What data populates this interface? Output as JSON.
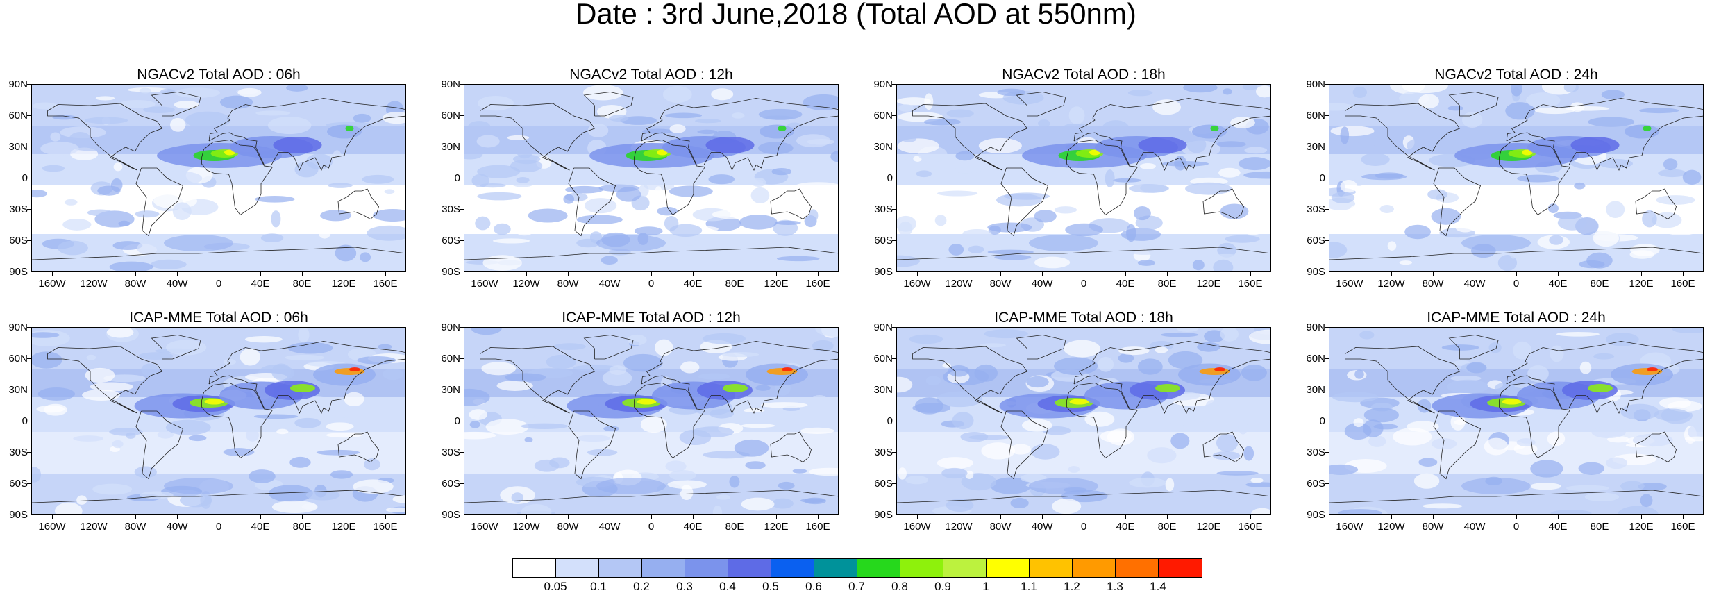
{
  "title": "Date : 3rd June,2018 (Total AOD at 550nm)",
  "panels": [
    {
      "title": "NGACv2 Total AOD : 06h",
      "model": "NGACv2",
      "hour": 6
    },
    {
      "title": "NGACv2 Total AOD : 12h",
      "model": "NGACv2",
      "hour": 12
    },
    {
      "title": "NGACv2 Total AOD : 18h",
      "model": "NGACv2",
      "hour": 18
    },
    {
      "title": "NGACv2 Total AOD : 24h",
      "model": "NGACv2",
      "hour": 24
    },
    {
      "title": "ICAP-MME Total AOD : 06h",
      "model": "ICAP-MME",
      "hour": 6
    },
    {
      "title": "ICAP-MME Total AOD : 12h",
      "model": "ICAP-MME",
      "hour": 12
    },
    {
      "title": "ICAP-MME Total AOD : 18h",
      "model": "ICAP-MME",
      "hour": 18
    },
    {
      "title": "ICAP-MME Total AOD : 24h",
      "model": "ICAP-MME",
      "hour": 24
    }
  ],
  "lat_labels": [
    "90N",
    "60N",
    "30N",
    "0",
    "30S",
    "60S",
    "90S"
  ],
  "lon_labels": [
    "160W",
    "120W",
    "80W",
    "40W",
    "0",
    "40E",
    "80E",
    "120E",
    "160E"
  ],
  "colorbar": {
    "labels": [
      "0.05",
      "0.1",
      "0.2",
      "0.3",
      "0.4",
      "0.5",
      "0.6",
      "0.7",
      "0.8",
      "0.9",
      "1",
      "1.1",
      "1.2",
      "1.3",
      "1.4"
    ],
    "colors": [
      "#ffffff",
      "#d3e0fb",
      "#b4c7f5",
      "#96aff0",
      "#7b93ec",
      "#5e6be6",
      "#0a60f0",
      "#00929a",
      "#26d81c",
      "#8ef10c",
      "#bcf23e",
      "#ffff00",
      "#ffc200",
      "#ff9a00",
      "#ff7000",
      "#ff1a00"
    ]
  }
}
